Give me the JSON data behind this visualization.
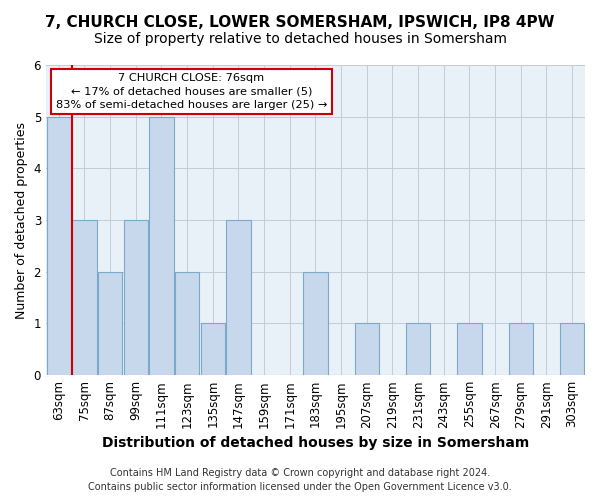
{
  "title1": "7, CHURCH CLOSE, LOWER SOMERSHAM, IPSWICH, IP8 4PW",
  "title2": "Size of property relative to detached houses in Somersham",
  "xlabel": "Distribution of detached houses by size in Somersham",
  "ylabel": "Number of detached properties",
  "footer1": "Contains HM Land Registry data © Crown copyright and database right 2024.",
  "footer2": "Contains public sector information licensed under the Open Government Licence v3.0.",
  "categories": [
    "63sqm",
    "75sqm",
    "87sqm",
    "99sqm",
    "111sqm",
    "123sqm",
    "135sqm",
    "147sqm",
    "159sqm",
    "171sqm",
    "183sqm",
    "195sqm",
    "207sqm",
    "219sqm",
    "231sqm",
    "243sqm",
    "255sqm",
    "267sqm",
    "279sqm",
    "291sqm",
    "303sqm"
  ],
  "values": [
    5,
    3,
    2,
    3,
    5,
    2,
    1,
    3,
    0,
    0,
    2,
    0,
    1,
    0,
    1,
    0,
    1,
    0,
    1,
    0,
    1
  ],
  "bar_color": "#c8d8ec",
  "bar_edge_color": "#7aaac8",
  "property_line_x": 0.5,
  "annotation_title": "7 CHURCH CLOSE: 76sqm",
  "annotation_line1": "← 17% of detached houses are smaller (5)",
  "annotation_line2": "83% of semi-detached houses are larger (25) →",
  "annotation_box_facecolor": "#ffffff",
  "annotation_box_edgecolor": "#cc0000",
  "line_color": "#cc0000",
  "plot_bg_color": "#e8f0f8",
  "ylim": [
    0,
    6
  ],
  "yticks": [
    0,
    1,
    2,
    3,
    4,
    5,
    6
  ],
  "title1_fontsize": 11,
  "title2_fontsize": 10,
  "xlabel_fontsize": 10,
  "ylabel_fontsize": 9,
  "tick_fontsize": 8.5,
  "footer_fontsize": 7
}
